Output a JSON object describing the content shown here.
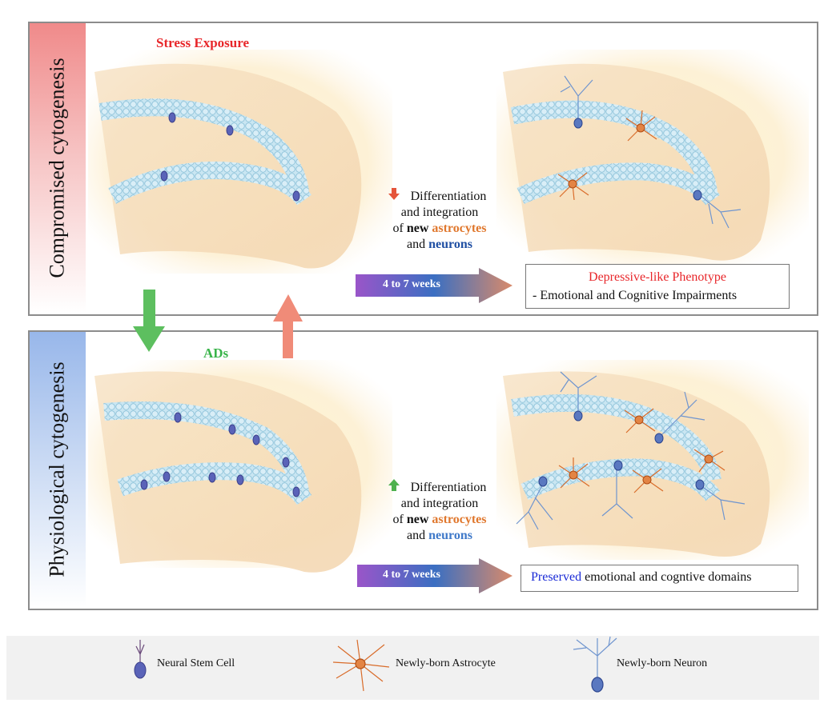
{
  "top_panel": {
    "side_label": "Compromised cytogenesis",
    "header": "Stress Exposure",
    "line1": "Differentiation",
    "line2": "and integration",
    "line3_of": "of",
    "line3_new": "new",
    "line3_astro": "astrocytes",
    "line4_and": "and",
    "line4_neurons": "neurons",
    "weeks": "4 to 7 weeks",
    "outcome_title": "Depressive-like Phenotype",
    "outcome_detail": "- Emotional and Cognitive Impairments"
  },
  "bottom_panel": {
    "side_label": "Physiological cytogenesis",
    "header": "ADs",
    "line1": "Differentiation",
    "line2": "and integration",
    "line3_of": "of",
    "line3_new": "new",
    "line3_astro": "astrocytes",
    "line4_and": "and",
    "line4_neurons": "neurons",
    "weeks": "4 to 7 weeks",
    "outcome_highlight": "Preserved",
    "outcome_rest": "emotional and cogntive domains"
  },
  "legend": {
    "stem_cell": "Neural Stem Cell",
    "astrocyte": "Newly-born Astrocyte",
    "neuron": "Newly-born Neuron"
  },
  "colors": {
    "stress_red": "#e8262a",
    "ads_green": "#39b44a",
    "astrocyte_orange": "#e0782e",
    "neuron_blue": "#1f4fa3",
    "preserved_blue": "#1a2ad6"
  }
}
